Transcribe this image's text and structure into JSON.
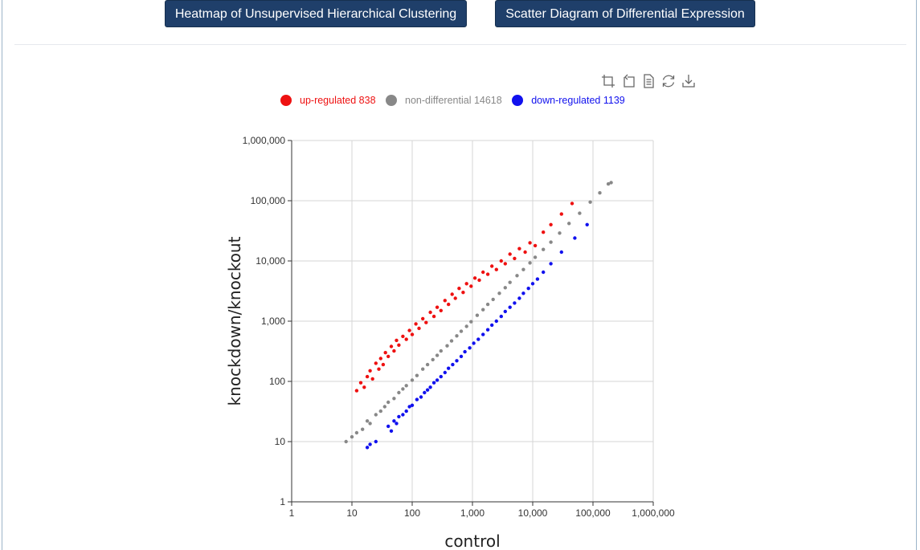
{
  "buttons": {
    "heatmap_label": "Heatmap of Unsupervised Hierarchical Clustering",
    "scatter_label": "Scatter Diagram of Differential Expression"
  },
  "toolbox": {
    "icons": [
      "zoom-icon",
      "zoom-reset-icon",
      "data-view-icon",
      "restore-icon",
      "save-image-icon"
    ]
  },
  "legend": [
    {
      "label": "up-regulated 838",
      "color": "#ee1111"
    },
    {
      "label": "non-differential 14618",
      "color": "#888888"
    },
    {
      "label": "down-regulated 1139",
      "color": "#1111ee"
    }
  ],
  "chart_data": {
    "type": "scatter",
    "xlabel": "control",
    "ylabel": "knockdown/knockout",
    "x_scale": "log",
    "y_scale": "log",
    "xlim": [
      1,
      1000000
    ],
    "ylim": [
      1,
      1000000
    ],
    "x_ticks": [
      "1",
      "10",
      "100",
      "1,000",
      "10,000",
      "100,000",
      "1,000,000"
    ],
    "y_ticks": [
      "1",
      "10",
      "100",
      "1,000",
      "10,000",
      "100,000",
      "1,000,000"
    ],
    "grid": true,
    "legend_position": "top",
    "series": [
      {
        "name": "up-regulated 838",
        "color": "#ee1111",
        "points": [
          [
            12,
            70
          ],
          [
            14,
            95
          ],
          [
            16,
            80
          ],
          [
            18,
            120
          ],
          [
            20,
            150
          ],
          [
            22,
            110
          ],
          [
            25,
            200
          ],
          [
            28,
            160
          ],
          [
            30,
            240
          ],
          [
            33,
            190
          ],
          [
            36,
            300
          ],
          [
            40,
            260
          ],
          [
            45,
            380
          ],
          [
            50,
            320
          ],
          [
            55,
            480
          ],
          [
            60,
            400
          ],
          [
            70,
            560
          ],
          [
            80,
            500
          ],
          [
            90,
            700
          ],
          [
            100,
            600
          ],
          [
            115,
            900
          ],
          [
            130,
            760
          ],
          [
            150,
            1100
          ],
          [
            170,
            950
          ],
          [
            200,
            1400
          ],
          [
            230,
            1200
          ],
          [
            260,
            1700
          ],
          [
            300,
            1500
          ],
          [
            350,
            2200
          ],
          [
            400,
            1900
          ],
          [
            460,
            2800
          ],
          [
            520,
            2400
          ],
          [
            600,
            3500
          ],
          [
            700,
            3000
          ],
          [
            800,
            4200
          ],
          [
            950,
            3800
          ],
          [
            1100,
            5200
          ],
          [
            1300,
            4800
          ],
          [
            1500,
            6500
          ],
          [
            1800,
            6000
          ],
          [
            2100,
            8200
          ],
          [
            2500,
            7200
          ],
          [
            3000,
            10000
          ],
          [
            3500,
            9000
          ],
          [
            4200,
            13000
          ],
          [
            5000,
            11000
          ],
          [
            6000,
            16000
          ],
          [
            7500,
            14000
          ],
          [
            9000,
            20000
          ],
          [
            11000,
            18000
          ],
          [
            15000,
            30000
          ],
          [
            20000,
            40000
          ],
          [
            30000,
            60000
          ],
          [
            45000,
            90000
          ]
        ]
      },
      {
        "name": "non-differential 14618",
        "color": "#888888",
        "points": [
          [
            8,
            10
          ],
          [
            10,
            12
          ],
          [
            12,
            14
          ],
          [
            15,
            16
          ],
          [
            18,
            22
          ],
          [
            20,
            20
          ],
          [
            25,
            28
          ],
          [
            30,
            32
          ],
          [
            35,
            38
          ],
          [
            40,
            45
          ],
          [
            50,
            52
          ],
          [
            60,
            65
          ],
          [
            70,
            75
          ],
          [
            80,
            85
          ],
          [
            100,
            105
          ],
          [
            120,
            125
          ],
          [
            150,
            160
          ],
          [
            180,
            190
          ],
          [
            220,
            230
          ],
          [
            260,
            270
          ],
          [
            300,
            320
          ],
          [
            380,
            390
          ],
          [
            450,
            470
          ],
          [
            550,
            570
          ],
          [
            650,
            680
          ],
          [
            800,
            820
          ],
          [
            950,
            980
          ],
          [
            1200,
            1250
          ],
          [
            1500,
            1550
          ],
          [
            1800,
            1900
          ],
          [
            2200,
            2300
          ],
          [
            2800,
            2900
          ],
          [
            3500,
            3600
          ],
          [
            4200,
            4400
          ],
          [
            5500,
            5700
          ],
          [
            7000,
            7200
          ],
          [
            9000,
            9300
          ],
          [
            11000,
            11500
          ],
          [
            15000,
            15500
          ],
          [
            20000,
            20500
          ],
          [
            28000,
            29000
          ],
          [
            40000,
            42000
          ],
          [
            60000,
            62000
          ],
          [
            90000,
            95000
          ],
          [
            130000,
            135000
          ],
          [
            180000,
            190000
          ],
          [
            200000,
            200000
          ]
        ]
      },
      {
        "name": "down-regulated 1139",
        "color": "#1111ee",
        "points": [
          [
            18,
            8
          ],
          [
            20,
            9
          ],
          [
            25,
            10
          ],
          [
            40,
            18
          ],
          [
            45,
            15
          ],
          [
            50,
            22
          ],
          [
            55,
            20
          ],
          [
            60,
            26
          ],
          [
            70,
            28
          ],
          [
            80,
            32
          ],
          [
            90,
            38
          ],
          [
            100,
            40
          ],
          [
            120,
            50
          ],
          [
            140,
            55
          ],
          [
            160,
            65
          ],
          [
            180,
            72
          ],
          [
            200,
            80
          ],
          [
            230,
            95
          ],
          [
            260,
            105
          ],
          [
            300,
            120
          ],
          [
            350,
            140
          ],
          [
            400,
            165
          ],
          [
            470,
            190
          ],
          [
            550,
            220
          ],
          [
            650,
            260
          ],
          [
            750,
            310
          ],
          [
            900,
            360
          ],
          [
            1050,
            430
          ],
          [
            1250,
            500
          ],
          [
            1500,
            600
          ],
          [
            1800,
            720
          ],
          [
            2100,
            860
          ],
          [
            2500,
            1000
          ],
          [
            3000,
            1200
          ],
          [
            3500,
            1450
          ],
          [
            4200,
            1700
          ],
          [
            5000,
            2000
          ],
          [
            6000,
            2400
          ],
          [
            7000,
            2900
          ],
          [
            8500,
            3500
          ],
          [
            10000,
            4200
          ],
          [
            12000,
            5000
          ],
          [
            15000,
            6500
          ],
          [
            20000,
            9000
          ],
          [
            30000,
            14000
          ],
          [
            50000,
            24000
          ],
          [
            80000,
            40000
          ]
        ]
      }
    ]
  }
}
